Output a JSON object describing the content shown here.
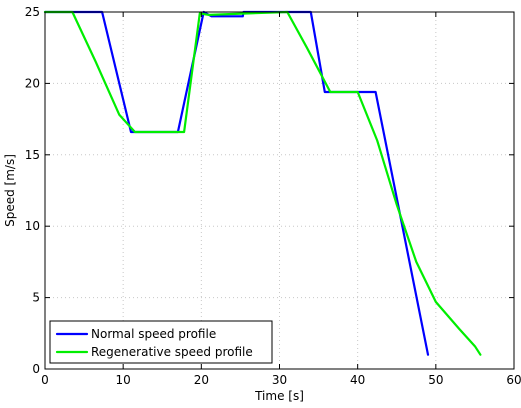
{
  "chart_data": {
    "type": "line",
    "xlabel": "Time [s]",
    "ylabel": "Speed [m/s]",
    "xlim": [
      0,
      60
    ],
    "ylim": [
      0,
      25
    ],
    "xticks": [
      0,
      10,
      20,
      30,
      40,
      50,
      60
    ],
    "yticks": [
      0,
      5,
      10,
      15,
      20,
      25
    ],
    "grid": true,
    "legend_position": "bottom-left",
    "series": [
      {
        "name": "Normal speed profile",
        "color": "#0000ff",
        "x": [
          0,
          7.3,
          11,
          17,
          20.3,
          21.3,
          25.3,
          25.4,
          26,
          31.5,
          34,
          35.8,
          42.3,
          49
        ],
        "y": [
          25,
          25,
          16.6,
          16.6,
          25,
          24.7,
          24.7,
          25,
          25,
          25,
          25,
          19.4,
          19.4,
          1
        ]
      },
      {
        "name": "Regenerative speed profile",
        "color": "#00ee00",
        "x": [
          0,
          3.5,
          6.5,
          9.5,
          11.5,
          17.8,
          19.8,
          21,
          26,
          31,
          33.5,
          36.5,
          40,
          42.5,
          45,
          47.5,
          50,
          53,
          55,
          55.7
        ],
        "y": [
          25,
          25,
          21.5,
          17.8,
          16.6,
          16.6,
          24.9,
          24.8,
          24.9,
          25,
          22.5,
          19.4,
          19.4,
          16,
          11.5,
          7.5,
          4.7,
          2.8,
          1.6,
          1
        ]
      }
    ]
  }
}
